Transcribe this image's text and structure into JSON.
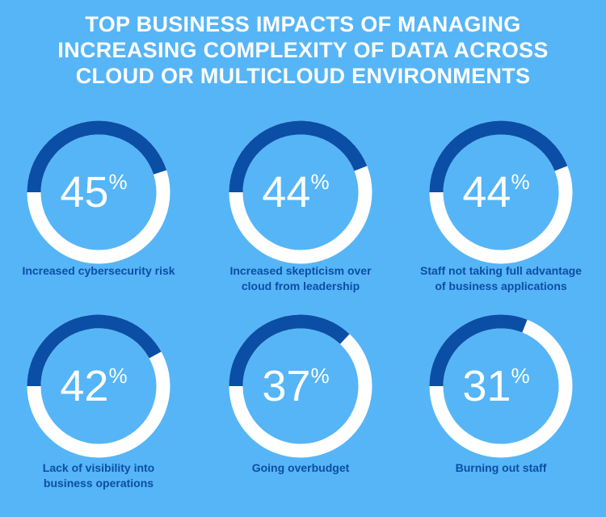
{
  "title_lines": [
    "TOP BUSINESS IMPACTS OF MANAGING",
    "INCREASING COMPLEXITY OF DATA ACROSS",
    "CLOUD OR MULTICLOUD ENVIRONMENTS"
  ],
  "colors": {
    "background": "#56b5f6",
    "arc": "#0b4ea6",
    "track": "#ffffff",
    "label": "#0b4ea6"
  },
  "chart_data": {
    "type": "donut",
    "title": "TOP BUSINESS IMPACTS OF MANAGING INCREASING COMPLEXITY OF DATA ACROSS CLOUD OR MULTICLOUD ENVIRONMENTS",
    "unit": "%",
    "items": [
      {
        "value": 45,
        "label_lines": [
          "Increased cybersecurity risk"
        ]
      },
      {
        "value": 44,
        "label_lines": [
          "Increased skepticism over",
          "cloud from leadership"
        ]
      },
      {
        "value": 44,
        "label_lines": [
          "Staff not taking full advantage",
          "of business applications"
        ]
      },
      {
        "value": 42,
        "label_lines": [
          "Lack of visibility into",
          "business operations"
        ]
      },
      {
        "value": 37,
        "label_lines": [
          "Going overbudget"
        ]
      },
      {
        "value": 31,
        "label_lines": [
          "Burning out staff"
        ]
      }
    ]
  }
}
